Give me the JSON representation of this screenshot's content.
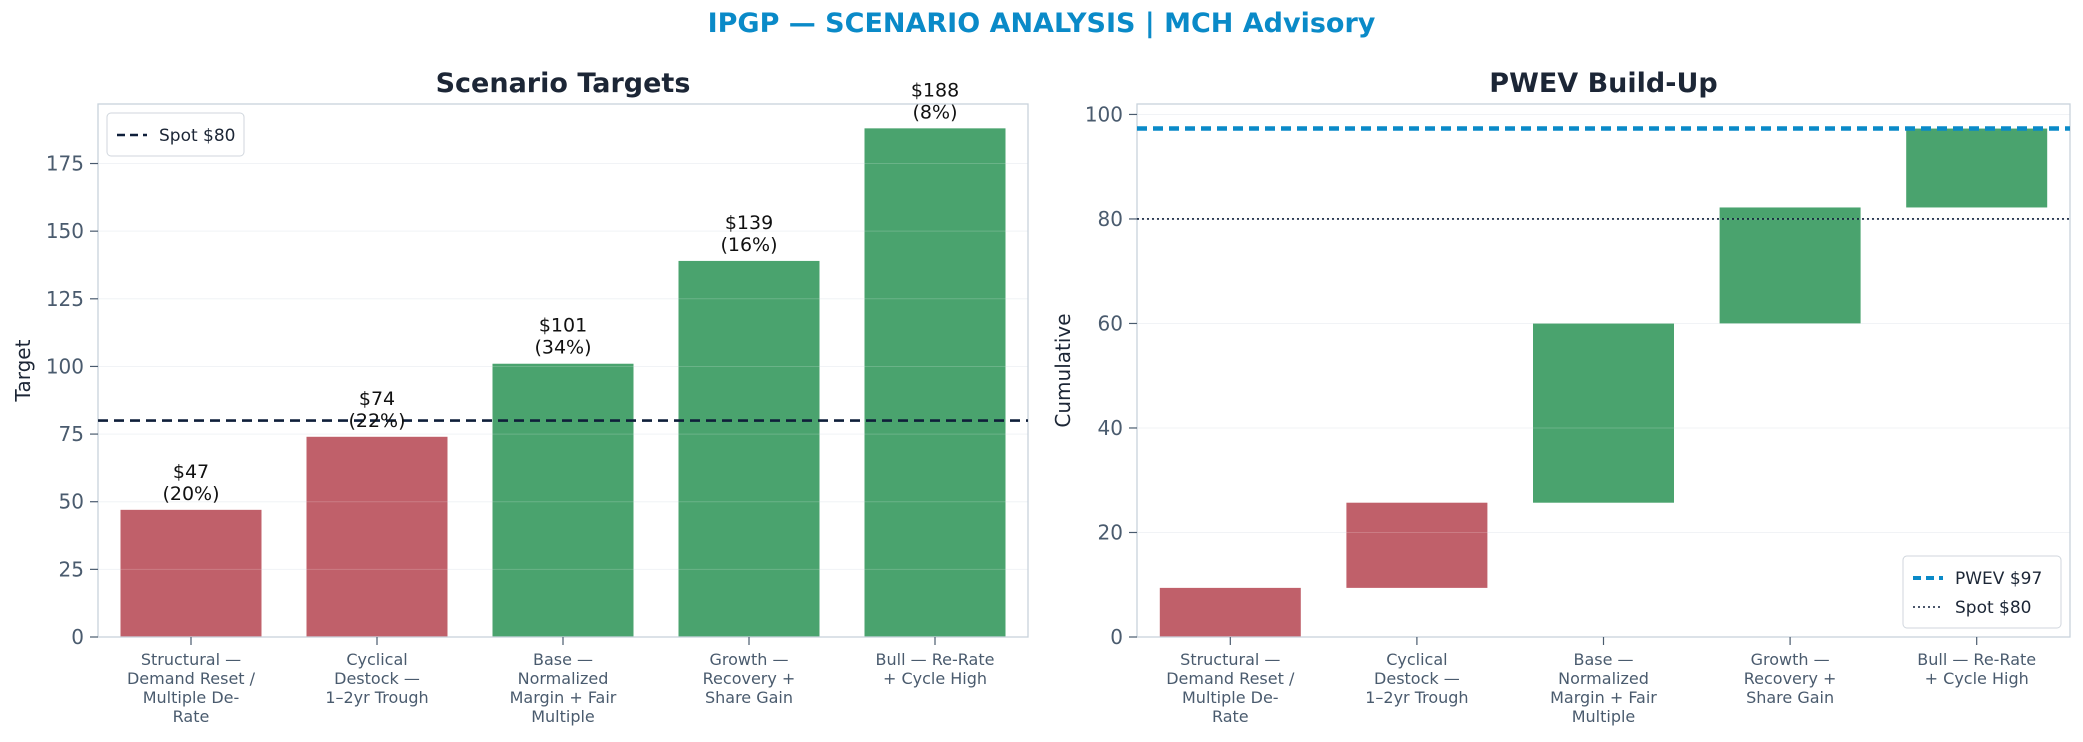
{
  "title": "IPGP — SCENARIO ANALYSIS | MCH Advisory",
  "colors": {
    "title": "#0a8ac8",
    "downside": "#c0606a",
    "upside": "#4aa36e",
    "pwev_line": "#0a8ac8",
    "spot_line": "#0f1f3a",
    "axis_text": "#4a5b6e",
    "frame": "#c8d2dc",
    "grid": "#eef1f4"
  },
  "chart_data": [
    {
      "type": "bar",
      "title": "Scenario Targets",
      "xlabel": "",
      "ylabel": "Target",
      "ylim": [
        0,
        197
      ],
      "yticks": [
        0,
        25,
        50,
        75,
        100,
        125,
        150,
        175
      ],
      "grid": true,
      "legend": {
        "placement": "top-left",
        "entries": [
          {
            "label": "Spot $80",
            "style": "dashed"
          }
        ]
      },
      "reference_lines": [
        {
          "label": "Spot $80",
          "value": 80,
          "style": "dashed"
        }
      ],
      "categories": [
        "Structural —\nDemand Reset /\nMultiple De-\nRate",
        "Cyclical\nDestock —\n1–2yr Trough",
        "Base —\nNormalized\nMargin + Fair\nMultiple",
        "Growth —\nRecovery +\nShare Gain",
        "Bull — Re-Rate\n+ Cycle High"
      ],
      "values": [
        47,
        74,
        101,
        139,
        188
      ],
      "probabilities": [
        20,
        22,
        34,
        16,
        8
      ],
      "data_labels": [
        "$47\n(20%)",
        "$74\n(22%)",
        "$101\n(34%)",
        "$139\n(16%)",
        "$188\n(8%)"
      ],
      "bar_colors": [
        "downside",
        "downside",
        "upside",
        "upside",
        "upside"
      ]
    },
    {
      "type": "bar",
      "subtype": "waterfall",
      "title": "PWEV Build-Up",
      "xlabel": "",
      "ylabel": "Cumulative",
      "ylim": [
        0,
        102
      ],
      "yticks": [
        0,
        20,
        40,
        60,
        80,
        100
      ],
      "grid": true,
      "legend": {
        "placement": "bottom-right",
        "entries": [
          {
            "label": "PWEV $97",
            "style": "dashed"
          },
          {
            "label": "Spot $80",
            "style": "dotted"
          }
        ]
      },
      "reference_lines": [
        {
          "label": "PWEV $97",
          "value": 97.3,
          "style": "dashed"
        },
        {
          "label": "Spot $80",
          "value": 80,
          "style": "dotted"
        }
      ],
      "categories": [
        "Structural —\nDemand Reset /\nMultiple De-\nRate",
        "Cyclical\nDestock —\n1–2yr Trough",
        "Base —\nNormalized\nMargin + Fair\nMultiple",
        "Growth —\nRecovery +\nShare Gain",
        "Bull — Re-Rate\n+ Cycle High"
      ],
      "bars": [
        {
          "start": 0,
          "end": 9.4
        },
        {
          "start": 9.4,
          "end": 25.7
        },
        {
          "start": 25.7,
          "end": 60.0
        },
        {
          "start": 60.0,
          "end": 82.2
        },
        {
          "start": 82.2,
          "end": 97.3
        }
      ],
      "bar_colors": [
        "downside",
        "downside",
        "upside",
        "upside",
        "upside"
      ]
    }
  ]
}
